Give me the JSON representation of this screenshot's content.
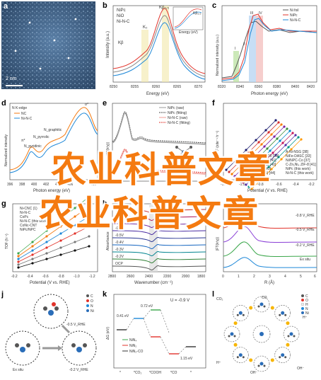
{
  "panels": {
    "a": {
      "label": "a",
      "scale_bar": "2 nm"
    },
    "b": {
      "label": "b",
      "legend": [
        "NiPc",
        "NiO",
        "Ni-N-C"
      ],
      "peaks": [
        "Kβ",
        "Kα",
        "Kβ₂,₅",
        "K₀",
        "K₀"
      ],
      "inset_peak": "Kβ₂,₅",
      "inset_xlabel": "Energy (eV)",
      "xlabel": "Energy (eV)",
      "ylabel": "Intensity (a.u.)",
      "xticks": [
        "8250",
        "8255",
        "8260",
        "8265",
        "8270"
      ]
    },
    "c": {
      "label": "c",
      "legend": [
        "Ni foil",
        "NiPc",
        "Ni-N-C"
      ],
      "roman": [
        "I",
        "II",
        "III",
        "IV"
      ],
      "xlabel": "Photon energy (eV)",
      "ylabel": "Normalized intensity (a.u.)",
      "xticks": [
        "8320",
        "8340",
        "8360",
        "8380",
        "8400",
        "8420"
      ]
    },
    "d": {
      "label": "d",
      "title": "N K-edge",
      "legend": [
        "NC",
        "Ni-N-C"
      ],
      "annotations": [
        "π*",
        "σ*",
        "N_pyridinic",
        "N_pyrrolic",
        "N_graphitic"
      ],
      "xlabel": "Photon energy (eV)",
      "ylabel": "Normalized intensity",
      "xticks": [
        "396",
        "398",
        "400",
        "402",
        "404",
        "406",
        "408",
        "410"
      ]
    },
    "e": {
      "label": "e",
      "legend": [
        "NiPc (raw)",
        "NiPc (fitting)",
        "Ni-N-C (raw)",
        "Ni-N-C (fitting)"
      ],
      "ylabel": "|FT(k³χ)|"
    },
    "f": {
      "label": "f",
      "legend": [
        "Ni-NC-1000 [39]",
        "Ni-NC-ZIF [41]",
        "NiSAs/NC [40]",
        "Ni-N-C [43]",
        "Ni-N-C(4) [44]",
        "C-Ni [45]",
        "Ni-N [46]",
        "NiPc (this work)",
        "A-Ni-NSG [38]",
        "NiFe-DASC [33]",
        "Ni/NPC-Co [37]",
        "C-Zn₁Ni₄ ZIF-8 [41]",
        "NiPc (this work)",
        "Ni-N-C (this work)"
      ],
      "xlabel": "Potential (V vs. RHE)",
      "ylabel": "TOF (site⁻¹ h⁻¹)",
      "xticks": [
        "-1.2",
        "-1.0",
        "-0.8",
        "-0.6",
        "-0.4",
        "-0.2"
      ]
    },
    "g": {
      "label": "g",
      "legend": [
        "Ni-CNC (1)",
        "Ni-N-C",
        "CoPc",
        "Ni-N-C (this work)",
        "CoNc-CNT",
        "NiPc/NPC"
      ],
      "xlabel": "Potential (V vs. RHE)",
      "ylabel": "TOF (h⁻¹)",
      "xticks": [
        "-0.2",
        "-0.4",
        "-0.6",
        "-0.8",
        "-1.0",
        "-1.2"
      ]
    },
    "h": {
      "label": "h",
      "potentials": [
        "-0.9V",
        "-0.8V",
        "-0.7V",
        "-0.6V",
        "-0.5V",
        "-0.4V",
        "-0.3V",
        "-0.2V",
        "OCP"
      ],
      "xlabel": "Wavenumber (cm⁻¹)",
      "ylabel": "Absorbance",
      "xticks": [
        "2800",
        "2600",
        "2400",
        "2200",
        "2000",
        "1800"
      ]
    },
    "i": {
      "label": "i",
      "curves": [
        "-0.8 V_RHE",
        "-0.5 V_RHE",
        "-0.2 V_RHE",
        "Ex situ"
      ],
      "xlabel": "R (Å)",
      "ylabel": "|FT(k³χ)|",
      "xticks": [
        "0",
        "1",
        "2",
        "3",
        "4",
        "5",
        "6"
      ]
    },
    "j": {
      "label": "j",
      "atoms": [
        "C",
        "O",
        "N",
        "Ni"
      ],
      "states": [
        "Ex situ",
        "-0.2 V_RHE",
        "-0.5 V_RHE"
      ]
    },
    "k": {
      "label": "k",
      "title": "U = -0.9 V",
      "energies": [
        "0.41 eV",
        "0.72 eV",
        "1.15 eV"
      ],
      "legend": [
        "NiN₄",
        "NiN₂",
        "NiN₂-CO"
      ],
      "ylabel": "ΔG (eV)",
      "xticks": [
        "*",
        "*CO₂",
        "*COOH",
        "*CO",
        "*"
      ]
    },
    "l": {
      "label": "l",
      "species": [
        "CO₂",
        "CO",
        "H⁺",
        "OH⁻",
        "H⁺",
        "OH⁻"
      ],
      "atoms": [
        "C",
        "O",
        "H",
        "N",
        "Ni"
      ]
    }
  },
  "watermark": {
    "line1": "农业科普文章",
    "line2": "农业科普文章"
  },
  "colors": {
    "orange": "#f47a10",
    "red": "#e2332b",
    "blue": "#1e88d8",
    "green": "#3aa64a",
    "purple": "#8a3fd6"
  }
}
